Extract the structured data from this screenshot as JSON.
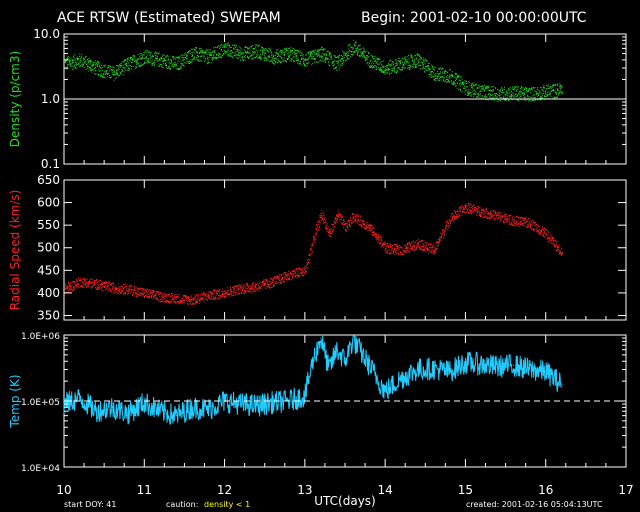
{
  "title": "ACE RTSW (Estimated) SWEPAM",
  "begin": "Begin: 2001-02-10 00:00:00UTC",
  "xlabel": "UTC(days)",
  "footer": {
    "start_doy": "start DOY:  41",
    "caution_label": "caution:",
    "caution_value": "density < 1",
    "created": "created: 2001-02-16 05:04:13UTC"
  },
  "colors": {
    "density": "#22dd22",
    "speed": "#ff2020",
    "temp": "#22ccff",
    "axes": "#ffffff",
    "caution": "#ffff00"
  },
  "chart_data": [
    {
      "type": "scatter",
      "ylabel": "Density  (p/cm3)",
      "yscale": "log",
      "ylim": [
        0.1,
        10
      ],
      "ytick_values": [
        10,
        1,
        0.1
      ],
      "ytick_labels": [
        "10.0",
        "1.0",
        "0.1"
      ],
      "reference_line": 1.0,
      "xlim": [
        10,
        17
      ],
      "xtick_labels": [
        "10",
        "11",
        "12",
        "13",
        "14",
        "15",
        "16",
        "17"
      ],
      "series": [
        {
          "x": [
            10.0,
            10.2,
            10.4,
            10.6,
            10.8,
            11.0,
            11.2,
            11.4,
            11.6,
            11.8,
            12.0,
            12.2,
            12.4,
            12.6,
            12.8,
            13.0,
            13.2,
            13.4,
            13.6,
            13.8,
            14.0,
            14.2,
            14.4,
            14.6,
            14.8,
            15.0,
            15.2,
            15.4,
            15.6,
            15.8,
            16.0,
            16.2
          ],
          "y": [
            3.5,
            4.0,
            3.0,
            2.5,
            3.5,
            4.5,
            4.0,
            3.5,
            5.0,
            4.5,
            6.0,
            5.0,
            5.5,
            4.5,
            5.0,
            4.0,
            5.0,
            3.5,
            6.5,
            4.0,
            3.0,
            3.5,
            4.0,
            2.5,
            2.3,
            1.5,
            1.3,
            1.2,
            1.25,
            1.2,
            1.3,
            1.4
          ]
        }
      ]
    },
    {
      "type": "scatter",
      "ylabel": "Radial  Speed  (km/s)",
      "ylim": [
        340,
        650
      ],
      "ytick_values": [
        350,
        400,
        450,
        500,
        550,
        600,
        650
      ],
      "ytick_labels": [
        "350",
        "400",
        "450",
        "500",
        "550",
        "600",
        "650"
      ],
      "xlim": [
        10,
        17
      ],
      "series": [
        {
          "x": [
            10.0,
            10.2,
            10.4,
            10.6,
            10.8,
            11.0,
            11.2,
            11.4,
            11.6,
            11.8,
            12.0,
            12.2,
            12.4,
            12.6,
            12.8,
            13.0,
            13.1,
            13.2,
            13.3,
            13.4,
            13.5,
            13.6,
            13.8,
            14.0,
            14.2,
            14.4,
            14.6,
            14.8,
            15.0,
            15.2,
            15.4,
            15.6,
            15.8,
            16.0,
            16.2
          ],
          "y": [
            410,
            425,
            420,
            412,
            408,
            400,
            392,
            388,
            385,
            395,
            402,
            410,
            415,
            425,
            440,
            450,
            520,
            575,
            530,
            575,
            545,
            570,
            545,
            500,
            495,
            510,
            495,
            565,
            590,
            580,
            570,
            560,
            555,
            530,
            490
          ]
        }
      ]
    },
    {
      "type": "line",
      "ylabel": "Temp  (K)",
      "yscale": "log",
      "ylim": [
        10000,
        1000000
      ],
      "ytick_values": [
        1000000,
        100000,
        10000
      ],
      "ytick_labels": [
        "1.0E+06",
        "1.0E+05",
        "1.0E+04"
      ],
      "reference_line": 100000,
      "xlim": [
        10,
        17
      ],
      "series": [
        {
          "x": [
            10.0,
            10.2,
            10.4,
            10.6,
            10.8,
            11.0,
            11.2,
            11.4,
            11.6,
            11.8,
            12.0,
            12.2,
            12.4,
            12.6,
            12.8,
            13.0,
            13.1,
            13.2,
            13.3,
            13.4,
            13.5,
            13.6,
            13.8,
            14.0,
            14.2,
            14.4,
            14.6,
            14.8,
            15.0,
            15.2,
            15.4,
            15.6,
            15.8,
            16.0,
            16.2
          ],
          "y": [
            90000,
            110000,
            70000,
            80000,
            65000,
            95000,
            70000,
            60000,
            80000,
            75000,
            100000,
            90000,
            85000,
            95000,
            100000,
            120000,
            400000,
            900000,
            300000,
            600000,
            400000,
            850000,
            350000,
            140000,
            220000,
            300000,
            310000,
            280000,
            380000,
            360000,
            330000,
            350000,
            300000,
            280000,
            180000
          ]
        }
      ]
    }
  ]
}
